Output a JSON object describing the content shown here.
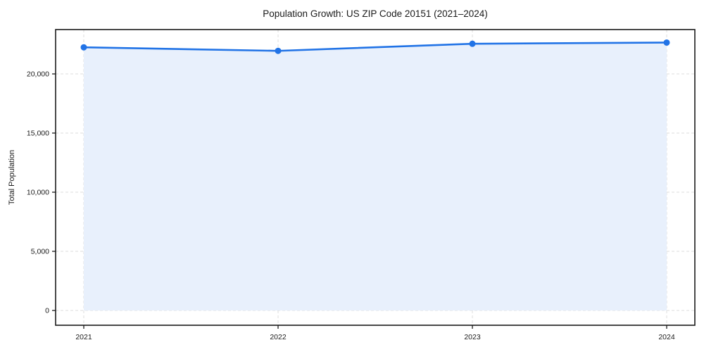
{
  "chart_data": {
    "type": "line",
    "title": "Population Growth: US ZIP Code 20151 (2021–2024)",
    "xlabel": "",
    "ylabel": "Total Population",
    "x": [
      2021,
      2022,
      2023,
      2024
    ],
    "xtick_labels": [
      "2021",
      "2022",
      "2023",
      "2024"
    ],
    "series": [
      {
        "name": "Total Population",
        "values": [
          22250,
          21950,
          22550,
          22650
        ],
        "line_color": "#2173e6",
        "marker": "circle",
        "marker_color": "#2173e6",
        "area_fill": true,
        "area_color": "#e8f0fc"
      }
    ],
    "yticks": [
      0,
      5000,
      10000,
      15000,
      20000
    ],
    "ytick_labels": [
      "0",
      "5,000",
      "10,000",
      "15,000",
      "20,000"
    ],
    "ylim": [
      -1250,
      23750
    ],
    "grid": "dashed-both-axes",
    "grid_color": "#dcdcdc",
    "spine_color": "#1a1a1a",
    "legend": "none",
    "background": "#ffffff"
  }
}
